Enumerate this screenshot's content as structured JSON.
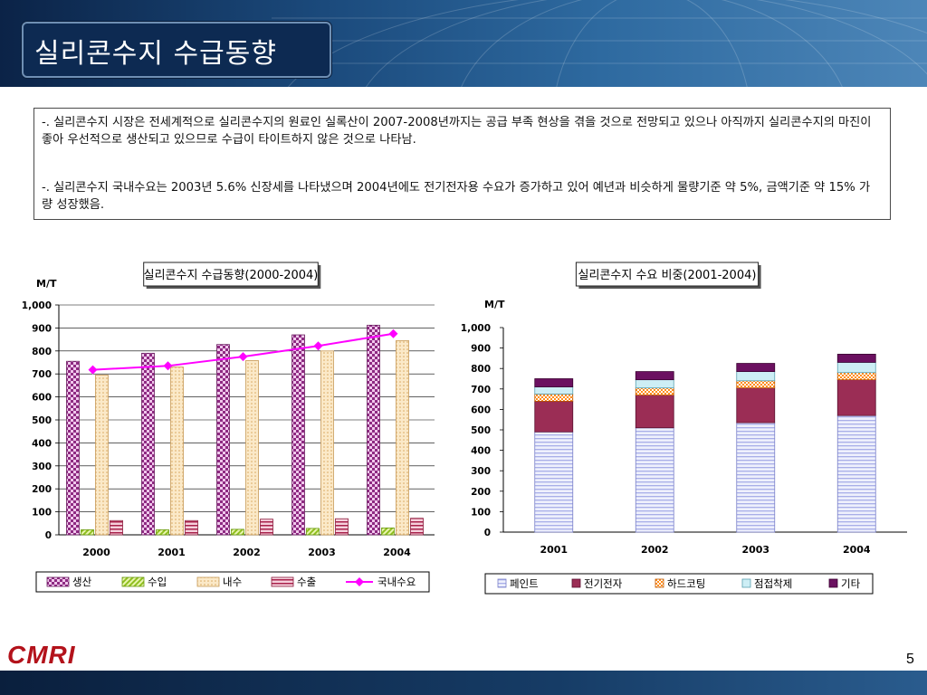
{
  "header": {
    "title": "실리콘수지 수급동향"
  },
  "description": {
    "para1": "-. 실리콘수지 시장은 전세계적으로 실리콘수지의 원료인 실록산이 2007-2008년까지는 공급 부족 현상을 겪을 것으로 전망되고 있으나 아직까지 실리콘수지의 마진이 좋아 우선적으로 생산되고 있으므로 수급이 타이트하지 않은 것으로 나타남.",
    "para2": "-. 실리콘수지 국내수요는 2003년 5.6% 신장세를 나타냈으며 2004년에도 전기전자용 수요가 증가하고 있어 예년과 비슷하게 물량기준 약 5%, 금액기준 약 15% 가량 성장했음."
  },
  "footer": {
    "logo": "CMRI",
    "page_number": "5"
  },
  "chart_data": [
    {
      "type": "bar",
      "title": "실리콘수지 수급동향(2000-2004)",
      "ylabel": "M/T",
      "ylim": [
        0,
        1000
      ],
      "yticks": [
        "0",
        "100",
        "200",
        "300",
        "400",
        "500",
        "600",
        "700",
        "800",
        "900",
        "1,000"
      ],
      "categories": [
        "2000",
        "2001",
        "2002",
        "2003",
        "2004"
      ],
      "series": [
        {
          "name": "생산",
          "values": [
            755,
            790,
            828,
            870,
            912
          ]
        },
        {
          "name": "수입",
          "values": [
            22,
            22,
            24,
            28,
            30
          ]
        },
        {
          "name": "내수",
          "values": [
            695,
            730,
            758,
            800,
            845
          ]
        },
        {
          "name": "수출",
          "values": [
            62,
            62,
            68,
            70,
            72
          ]
        },
        {
          "name": "국내수요",
          "type": "line",
          "values": [
            718,
            735,
            775,
            822,
            875
          ]
        }
      ],
      "colors": {
        "생산": "#9b2d8e",
        "수입": "#9acd32",
        "내수": "#f5d9a8",
        "수출": "#b03060",
        "국내수요": "#ff00ff"
      },
      "grid": true,
      "legend": "bottom"
    },
    {
      "type": "bar",
      "stacked": true,
      "title": "실리콘수지 수요 비중(2001-2004)",
      "ylabel": "M/T",
      "ylim": [
        0,
        1000
      ],
      "yticks": [
        "0",
        "100",
        "200",
        "300",
        "400",
        "500",
        "600",
        "700",
        "800",
        "900",
        "1,000"
      ],
      "categories": [
        "2001",
        "2002",
        "2003",
        "2004"
      ],
      "series": [
        {
          "name": "페인트",
          "values": [
            490,
            510,
            535,
            570
          ]
        },
        {
          "name": "전기전자",
          "values": [
            150,
            160,
            170,
            175
          ]
        },
        {
          "name": "하드코팅",
          "values": [
            35,
            35,
            35,
            35
          ]
        },
        {
          "name": "점접착제",
          "values": [
            35,
            40,
            45,
            50
          ]
        },
        {
          "name": "기타",
          "values": [
            40,
            40,
            40,
            40
          ]
        }
      ],
      "colors": {
        "페인트": "#c5c8f0",
        "전기전자": "#9b2d55",
        "하드코팅": "#ff8c1a",
        "점접착제": "#cdeef5",
        "기타": "#6b1060"
      },
      "grid": false,
      "legend": "bottom"
    }
  ]
}
